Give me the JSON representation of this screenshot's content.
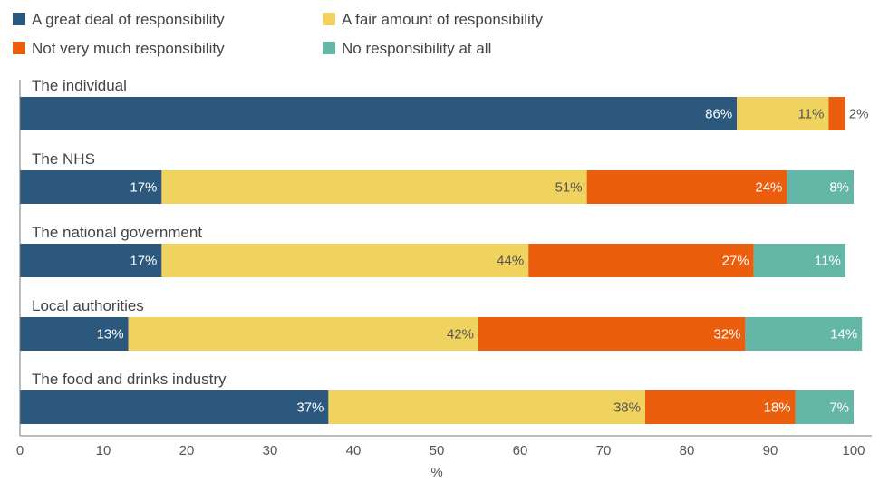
{
  "chart_data": {
    "type": "bar",
    "orientation": "horizontal",
    "stacked": true,
    "title": "",
    "xlabel": "%",
    "ylabel": "",
    "xlim": [
      0,
      100
    ],
    "x_ticks": [
      "0",
      "10",
      "20",
      "30",
      "40",
      "50",
      "60",
      "70",
      "80",
      "90",
      "100"
    ],
    "grid": false,
    "legend_position": "top-left",
    "categories": [
      "The individual",
      "The NHS",
      "The national government",
      "Local authorities",
      "The food and drinks industry"
    ],
    "series": [
      {
        "name": "A great deal of responsibility",
        "color": "#2b587c",
        "values": [
          86,
          17,
          17,
          13,
          37
        ],
        "labels": [
          "86%",
          "17%",
          "17%",
          "13%",
          "37%"
        ]
      },
      {
        "name": "A fair amount of responsibility",
        "color": "#f0d35e",
        "values": [
          11,
          51,
          44,
          42,
          38
        ],
        "labels": [
          "11%",
          "51%",
          "44%",
          "42%",
          "38%"
        ]
      },
      {
        "name": "Not very much responsibility",
        "color": "#ea5e0e",
        "values": [
          2,
          24,
          27,
          32,
          18
        ],
        "labels": [
          "2%",
          "24%",
          "27%",
          "32%",
          "18%"
        ]
      },
      {
        "name": "No responsibility at all",
        "color": "#64b6a6",
        "values": [
          0,
          8,
          11,
          14,
          7
        ],
        "labels": [
          "",
          "8%",
          "11%",
          "14%",
          "7%"
        ]
      }
    ]
  }
}
